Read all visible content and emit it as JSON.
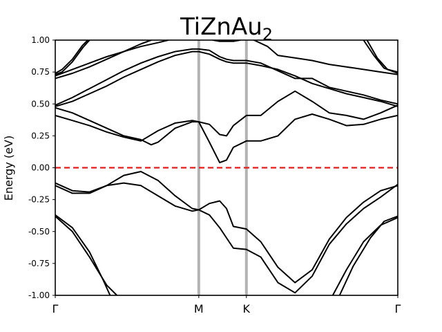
{
  "chart_data": {
    "type": "line",
    "title": "TiZnAu",
    "title_subscript": "2",
    "ylabel": "Energy (eV)",
    "xlabel": "",
    "ylim": [
      -1.0,
      1.0
    ],
    "xlim": [
      0,
      1
    ],
    "yticks": [
      "1.00",
      "0.75",
      "0.50",
      "0.25",
      "0.00",
      "-0.25",
      "-0.50",
      "-0.75",
      "-1.00"
    ],
    "ytick_values": [
      1.0,
      0.75,
      0.5,
      0.25,
      0.0,
      -0.25,
      -0.5,
      -0.75,
      -1.0
    ],
    "kpoints": [
      {
        "label": "Γ",
        "x": 0.0
      },
      {
        "label": "M",
        "x": 0.419
      },
      {
        "label": "K",
        "x": 0.558
      },
      {
        "label": "Γ",
        "x": 1.0
      }
    ],
    "fermi_level": 0.0,
    "fermi_color": "#e41a1c",
    "kpoint_line_color": "#b3b3b3",
    "band_color": "#000000",
    "grid": false,
    "series": [
      {
        "x": [
          0.0,
          0.05,
          0.1,
          0.15,
          0.18
        ],
        "y": [
          -0.38,
          -0.5,
          -0.7,
          -0.92,
          -1.0
        ]
      },
      {
        "x": [
          0.0,
          0.05,
          0.1,
          0.14,
          0.16
        ],
        "y": [
          -0.37,
          -0.47,
          -0.66,
          -0.88,
          -1.0
        ]
      },
      {
        "x": [
          0.0,
          0.05,
          0.1,
          0.15,
          0.2,
          0.25,
          0.3,
          0.35,
          0.4,
          0.419,
          0.45,
          0.48,
          0.5,
          0.52,
          0.558,
          0.6,
          0.65,
          0.7,
          0.75,
          0.8,
          0.85,
          0.9,
          0.95,
          1.0
        ],
        "y": [
          -0.14,
          -0.2,
          -0.2,
          -0.14,
          -0.06,
          -0.03,
          -0.1,
          -0.22,
          -0.32,
          -0.33,
          -0.28,
          -0.26,
          -0.32,
          -0.46,
          -0.48,
          -0.58,
          -0.78,
          -0.9,
          -0.8,
          -0.56,
          -0.39,
          -0.27,
          -0.18,
          -0.14
        ]
      },
      {
        "x": [
          0.0,
          0.05,
          0.1,
          0.15,
          0.2,
          0.25,
          0.3,
          0.35,
          0.4,
          0.419,
          0.45,
          0.48,
          0.5,
          0.52,
          0.558,
          0.6,
          0.65,
          0.7,
          0.75,
          0.8,
          0.85,
          0.9,
          0.95,
          1.0
        ],
        "y": [
          -0.12,
          -0.18,
          -0.19,
          -0.14,
          -0.12,
          -0.14,
          -0.22,
          -0.3,
          -0.34,
          -0.33,
          -0.37,
          -0.47,
          -0.55,
          -0.63,
          -0.64,
          -0.7,
          -0.9,
          -0.98,
          -0.85,
          -0.6,
          -0.44,
          -0.32,
          -0.23,
          -0.13
        ]
      },
      {
        "x": [
          0.81,
          0.85,
          0.9,
          0.95,
          1.0
        ],
        "y": [
          -1.0,
          -0.8,
          -0.58,
          -0.45,
          -0.39
        ]
      },
      {
        "x": [
          0.83,
          0.87,
          0.92,
          0.96,
          1.0
        ],
        "y": [
          -1.0,
          -0.77,
          -0.55,
          -0.42,
          -0.38
        ]
      },
      {
        "x": [
          0.0,
          0.05,
          0.1,
          0.15,
          0.2,
          0.25,
          0.3,
          0.35,
          0.4,
          0.419,
          0.45,
          0.48,
          0.5,
          0.52,
          0.558,
          0.6,
          0.65,
          0.7,
          0.75,
          0.8,
          0.85,
          0.9,
          0.95,
          1.0
        ],
        "y": [
          0.41,
          0.37,
          0.33,
          0.28,
          0.24,
          0.21,
          0.29,
          0.35,
          0.37,
          0.36,
          0.2,
          0.04,
          0.06,
          0.16,
          0.21,
          0.21,
          0.25,
          0.38,
          0.42,
          0.38,
          0.33,
          0.34,
          0.38,
          0.41
        ]
      },
      {
        "x": [
          0.0,
          0.05,
          0.1,
          0.15,
          0.2,
          0.25,
          0.28,
          0.3,
          0.35,
          0.4,
          0.419,
          0.45,
          0.48,
          0.5,
          0.52,
          0.558,
          0.6,
          0.65,
          0.7,
          0.75,
          0.8,
          0.85,
          0.9,
          0.95,
          1.0
        ],
        "y": [
          0.47,
          0.43,
          0.37,
          0.31,
          0.25,
          0.22,
          0.18,
          0.2,
          0.31,
          0.36,
          0.36,
          0.34,
          0.26,
          0.25,
          0.33,
          0.41,
          0.41,
          0.52,
          0.6,
          0.52,
          0.43,
          0.41,
          0.38,
          0.43,
          0.49
        ]
      },
      {
        "x": [
          0.0,
          0.05,
          0.1,
          0.15,
          0.2,
          0.25,
          0.3,
          0.35,
          0.4,
          0.419,
          0.45,
          0.48,
          0.5,
          0.52,
          0.558,
          0.6,
          0.65,
          0.7,
          0.75,
          0.8,
          0.85,
          0.9,
          0.95,
          1.0
        ],
        "y": [
          0.48,
          0.52,
          0.58,
          0.64,
          0.71,
          0.77,
          0.83,
          0.88,
          0.91,
          0.91,
          0.89,
          0.85,
          0.83,
          0.82,
          0.82,
          0.8,
          0.77,
          0.72,
          0.66,
          0.62,
          0.58,
          0.55,
          0.52,
          0.48
        ]
      },
      {
        "x": [
          0.0,
          0.05,
          0.1,
          0.15,
          0.2,
          0.25,
          0.3,
          0.35,
          0.4,
          0.419,
          0.45,
          0.48,
          0.5,
          0.52,
          0.558,
          0.6,
          0.65,
          0.7,
          0.75,
          0.8,
          0.85,
          0.9,
          0.95,
          1.0
        ],
        "y": [
          0.49,
          0.55,
          0.62,
          0.69,
          0.76,
          0.82,
          0.87,
          0.91,
          0.93,
          0.93,
          0.92,
          0.87,
          0.85,
          0.84,
          0.84,
          0.82,
          0.76,
          0.7,
          0.7,
          0.63,
          0.6,
          0.57,
          0.53,
          0.5
        ]
      },
      {
        "x": [
          0.0,
          0.05,
          0.1,
          0.15,
          0.2,
          0.25,
          0.28
        ],
        "y": [
          0.7,
          0.74,
          0.79,
          0.85,
          0.91,
          0.97,
          1.0
        ]
      },
      {
        "x": [
          0.0,
          0.05,
          0.1,
          0.15,
          0.2,
          0.25,
          0.3,
          0.33
        ],
        "y": [
          0.72,
          0.77,
          0.82,
          0.87,
          0.91,
          0.95,
          0.98,
          1.0
        ]
      },
      {
        "x": [
          0.0,
          0.02,
          0.05,
          0.08,
          0.1
        ],
        "y": [
          0.73,
          0.75,
          0.83,
          0.94,
          1.0
        ]
      },
      {
        "x": [
          0.0,
          0.02,
          0.05,
          0.08,
          0.095
        ],
        "y": [
          0.74,
          0.77,
          0.85,
          0.96,
          1.0
        ]
      },
      {
        "x": [
          0.58,
          0.62,
          0.65,
          0.7,
          0.75,
          0.8,
          0.85,
          0.9,
          0.95,
          1.0
        ],
        "y": [
          1.0,
          0.95,
          0.88,
          0.86,
          0.84,
          0.81,
          0.79,
          0.77,
          0.75,
          0.73
        ]
      },
      {
        "x": [
          0.46,
          0.48,
          0.5,
          0.52,
          0.54
        ],
        "y": [
          1.0,
          0.99,
          0.99,
          0.99,
          1.0
        ]
      },
      {
        "x": [
          0.91,
          0.94,
          0.97,
          1.0
        ],
        "y": [
          1.0,
          0.86,
          0.77,
          0.75
        ]
      },
      {
        "x": [
          0.9,
          0.93,
          0.96,
          1.0
        ],
        "y": [
          1.0,
          0.88,
          0.78,
          0.74
        ]
      }
    ]
  }
}
